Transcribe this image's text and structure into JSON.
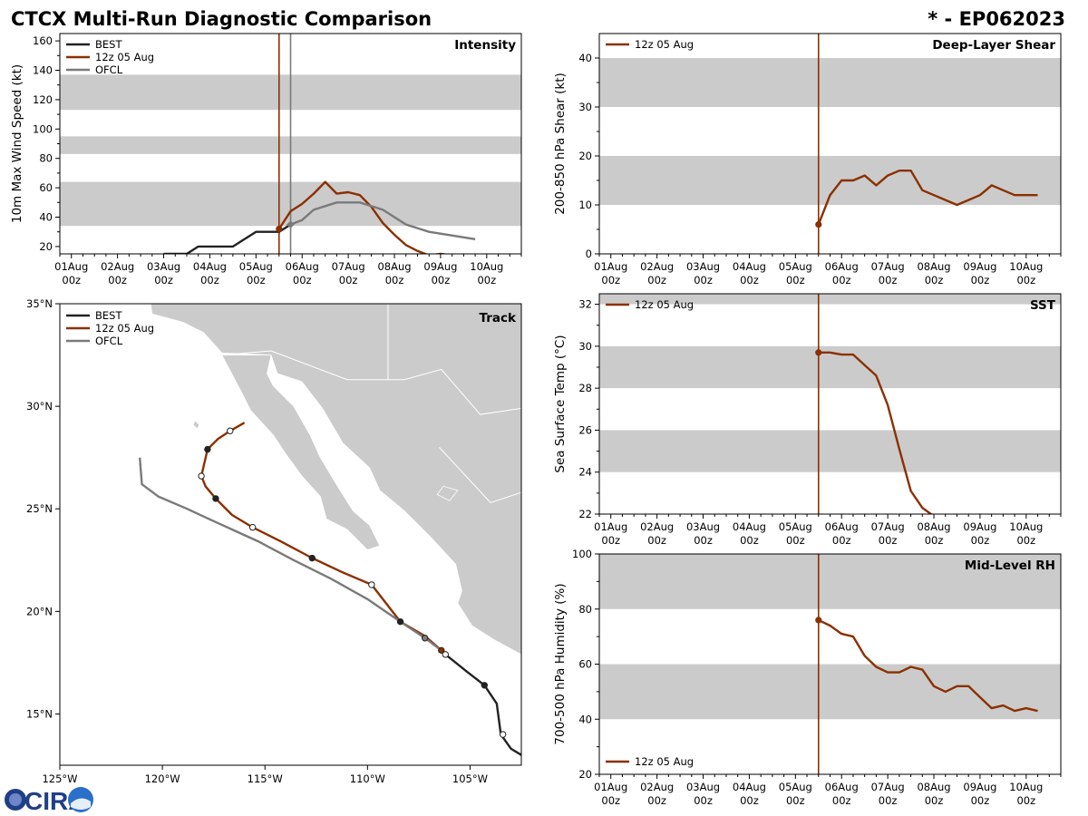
{
  "figure": {
    "title": "CTCX Multi-Run Diagnostic Comparison",
    "storm_id": "* - EP062023",
    "logo_text": "CIRA",
    "colors": {
      "best": "#222222",
      "run": "#8b3000",
      "ofcl": "#7a7a7a",
      "band": "#cbcbcb",
      "land": "#cbcbcb"
    }
  },
  "time_axis": {
    "ticks": [
      {
        "day": 0,
        "label": "01Aug",
        "sub": "00z"
      },
      {
        "day": 1,
        "label": "02Aug",
        "sub": "00z"
      },
      {
        "day": 2,
        "label": "03Aug",
        "sub": "00z"
      },
      {
        "day": 3,
        "label": "04Aug",
        "sub": "00z"
      },
      {
        "day": 4,
        "label": "05Aug",
        "sub": "00z"
      },
      {
        "day": 5,
        "label": "06Aug",
        "sub": "00z"
      },
      {
        "day": 6,
        "label": "07Aug",
        "sub": "00z"
      },
      {
        "day": 7,
        "label": "08Aug",
        "sub": "00z"
      },
      {
        "day": 8,
        "label": "09Aug",
        "sub": "00z"
      },
      {
        "day": 9,
        "label": "10Aug",
        "sub": "00z"
      }
    ],
    "x_range_days": [
      -0.25,
      9.75
    ],
    "unit": "days since 01Aug 00z"
  },
  "chart_data": [
    {
      "id": "intensity",
      "type": "line",
      "title": "Intensity",
      "ylabel": "10m Max Wind Speed (kt)",
      "ylim": [
        15,
        165
      ],
      "yticks": [
        20,
        40,
        60,
        80,
        100,
        120,
        140,
        160
      ],
      "bands": [
        [
          34,
          64
        ],
        [
          83,
          95
        ],
        [
          113,
          137
        ]
      ],
      "vlines": [
        {
          "series": "12z 05 Aug",
          "x": 4.5
        },
        {
          "series": "OFCL",
          "x": 4.75
        }
      ],
      "legend": [
        "BEST",
        "12z 05 Aug",
        "OFCL"
      ],
      "series": [
        {
          "name": "BEST",
          "x": [
            2.0,
            2.5,
            2.75,
            3.5,
            4.0,
            4.5,
            4.75
          ],
          "y": [
            15,
            15,
            20,
            20,
            30,
            30,
            35
          ]
        },
        {
          "name": "12z 05 Aug",
          "x": [
            4.5,
            4.75,
            5.0,
            5.25,
            5.5,
            5.75,
            6.0,
            6.25,
            6.5,
            6.75,
            7.0,
            7.25,
            7.5,
            7.75,
            8.0,
            8.25
          ],
          "y": [
            32,
            44,
            49,
            56,
            64,
            56,
            57,
            55,
            47,
            36,
            28,
            21,
            17,
            14,
            15,
            14
          ]
        },
        {
          "name": "OFCL",
          "x": [
            4.75,
            5.0,
            5.25,
            5.75,
            6.25,
            6.75,
            7.25,
            7.75,
            8.75
          ],
          "y": [
            35,
            38,
            45,
            50,
            50,
            45,
            35,
            30,
            25
          ]
        }
      ],
      "markers": [
        {
          "series": "12z 05 Aug",
          "x": 4.5,
          "y": 32
        },
        {
          "series": "OFCL",
          "x": 4.75,
          "y": 35
        }
      ]
    },
    {
      "id": "shear",
      "type": "line",
      "title": "Deep-Layer Shear",
      "ylabel": "200-850 hPa Shear (kt)",
      "ylim": [
        0,
        45
      ],
      "yticks": [
        0,
        10,
        20,
        30,
        40
      ],
      "bands": [
        [
          10,
          20
        ],
        [
          30,
          40
        ]
      ],
      "vlines": [
        {
          "series": "12z 05 Aug",
          "x": 4.5
        }
      ],
      "legend": [
        "12z 05 Aug"
      ],
      "series": [
        {
          "name": "12z 05 Aug",
          "x": [
            4.5,
            4.75,
            5.0,
            5.25,
            5.5,
            5.75,
            6.0,
            6.25,
            6.5,
            6.75,
            7.0,
            7.25,
            7.5,
            7.75,
            8.0,
            8.25,
            8.5,
            8.75,
            9.0,
            9.25
          ],
          "y": [
            6,
            12,
            15,
            15,
            16,
            14,
            16,
            17,
            17,
            13,
            12,
            11,
            10,
            11,
            12,
            14,
            13,
            12,
            12,
            12
          ]
        }
      ],
      "markers": [
        {
          "series": "12z 05 Aug",
          "x": 4.5,
          "y": 6
        }
      ]
    },
    {
      "id": "sst",
      "type": "line",
      "title": "SST",
      "ylabel": "Sea Surface Temp (°C)",
      "ylim": [
        22,
        32.5
      ],
      "yticks": [
        22,
        24,
        26,
        28,
        30,
        32
      ],
      "bands": [
        [
          24,
          26
        ],
        [
          28,
          30
        ],
        [
          32,
          32.5
        ]
      ],
      "vlines": [
        {
          "series": "12z 05 Aug",
          "x": 4.5
        }
      ],
      "legend": [
        "12z 05 Aug"
      ],
      "series": [
        {
          "name": "12z 05 Aug",
          "x": [
            4.5,
            4.75,
            5.0,
            5.25,
            5.5,
            5.75,
            6.0,
            6.25,
            6.5,
            6.75,
            7.0
          ],
          "y": [
            29.7,
            29.7,
            29.6,
            29.6,
            29.1,
            28.6,
            27.2,
            25.1,
            23.1,
            22.3,
            21.9
          ]
        }
      ],
      "markers": [
        {
          "series": "12z 05 Aug",
          "x": 4.5,
          "y": 29.7
        }
      ]
    },
    {
      "id": "rh",
      "type": "line",
      "title": "Mid-Level RH",
      "ylabel": "700-500 hPa Humidity (%)",
      "ylim": [
        20,
        100
      ],
      "yticks": [
        20,
        40,
        60,
        80,
        100
      ],
      "bands": [
        [
          40,
          60
        ],
        [
          80,
          100
        ]
      ],
      "vlines": [
        {
          "series": "12z 05 Aug",
          "x": 4.5
        }
      ],
      "legend": [
        "12z 05 Aug"
      ],
      "legend_pos": "bottom-left",
      "series": [
        {
          "name": "12z 05 Aug",
          "x": [
            4.5,
            4.75,
            5.0,
            5.25,
            5.5,
            5.75,
            6.0,
            6.25,
            6.5,
            6.75,
            7.0,
            7.25,
            7.5,
            7.75,
            8.0,
            8.25,
            8.5,
            8.75,
            9.0,
            9.25
          ],
          "y": [
            76,
            74,
            71,
            70,
            63,
            59,
            57,
            57,
            59,
            58,
            52,
            50,
            52,
            52,
            48,
            44,
            45,
            43,
            44,
            43
          ]
        }
      ],
      "markers": [
        {
          "series": "12z 05 Aug",
          "x": 4.5,
          "y": 76
        }
      ]
    },
    {
      "id": "track",
      "type": "scatter",
      "title": "Track",
      "xlabel_ticks": [
        "125°W",
        "120°W",
        "115°W",
        "110°W",
        "105°W"
      ],
      "ylabel_ticks": [
        "15°N",
        "20°N",
        "25°N",
        "30°N",
        "35°N"
      ],
      "xlim": [
        -125,
        -102.5
      ],
      "ylim": [
        12.5,
        35
      ],
      "legend": [
        "BEST",
        "12z 05 Aug",
        "OFCL"
      ],
      "series": [
        {
          "name": "BEST",
          "lon": [
            -102.5,
            -103.0,
            -103.5,
            -103.7,
            -104.3,
            -105.2,
            -106.2,
            -106.4
          ],
          "lat": [
            13.0,
            13.3,
            14.0,
            15.5,
            16.4,
            17.1,
            17.9,
            18.1
          ]
        },
        {
          "name": "12z 05 Aug",
          "lon": [
            -106.4,
            -107.2,
            -108.4,
            -109.8,
            -111.2,
            -112.7,
            -114.2,
            -115.6,
            -116.6,
            -117.4,
            -117.9,
            -118.1,
            -117.8,
            -117.3,
            -116.7,
            -116.0
          ],
          "lat": [
            18.1,
            18.8,
            19.5,
            21.3,
            21.9,
            22.6,
            23.4,
            24.1,
            24.7,
            25.5,
            26.1,
            26.6,
            27.9,
            28.4,
            28.8,
            29.2
          ]
        },
        {
          "name": "OFCL",
          "lon": [
            -106.4,
            -107.2,
            -108.4,
            -110.0,
            -111.8,
            -113.6,
            -115.3,
            -117.5,
            -118.8,
            -120.2,
            -121.0,
            -121.1
          ],
          "lat": [
            18.1,
            18.7,
            19.5,
            20.6,
            21.6,
            22.5,
            23.4,
            24.4,
            25.0,
            25.6,
            26.2,
            27.5
          ]
        }
      ],
      "markers": [
        {
          "series": "BEST",
          "lon": -103.4,
          "lat": 14.0,
          "fill": "white"
        },
        {
          "series": "BEST",
          "lon": -104.3,
          "lat": 16.4,
          "fill": "black"
        },
        {
          "series": "BEST",
          "lon": -106.2,
          "lat": 17.9,
          "fill": "white"
        },
        {
          "series": "12z 05 Aug",
          "lon": -106.4,
          "lat": 18.1,
          "fill": "run"
        },
        {
          "series": "OFCL",
          "lon": -107.2,
          "lat": 18.7,
          "fill": "ofcl"
        },
        {
          "series": "12z 05 Aug",
          "lon": -108.4,
          "lat": 19.5,
          "fill": "black"
        },
        {
          "series": "12z 05 Aug",
          "lon": -109.8,
          "lat": 21.3,
          "fill": "white"
        },
        {
          "series": "12z 05 Aug",
          "lon": -112.7,
          "lat": 22.6,
          "fill": "black"
        },
        {
          "series": "12z 05 Aug",
          "lon": -115.6,
          "lat": 24.1,
          "fill": "white"
        },
        {
          "series": "12z 05 Aug",
          "lon": -117.4,
          "lat": 25.5,
          "fill": "black"
        },
        {
          "series": "12z 05 Aug",
          "lon": -118.1,
          "lat": 26.6,
          "fill": "white"
        },
        {
          "series": "12z 05 Aug",
          "lon": -117.8,
          "lat": 27.9,
          "fill": "black"
        },
        {
          "series": "12z 05 Aug",
          "lon": -116.7,
          "lat": 28.8,
          "fill": "white"
        }
      ]
    }
  ]
}
